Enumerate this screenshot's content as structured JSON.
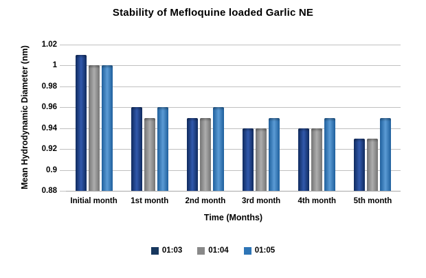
{
  "title": "Stability of Mefloquine loaded Garlic  NE",
  "chart_data": {
    "type": "bar",
    "title": "Stability of Mefloquine loaded Garlic  NE",
    "xlabel": "Time (Months)",
    "ylabel": "Mean Hydrodynamic Diameter (nm)",
    "categories": [
      "Initial month",
      "1st month",
      "2nd month",
      "3rd month",
      "4th month",
      "5th month"
    ],
    "series": [
      {
        "name": "01:03",
        "values": [
          1.01,
          0.96,
          0.95,
          0.94,
          0.94,
          0.93
        ],
        "legend_color": "#17375e",
        "bar_edge_color": "#0f2a5e",
        "bar_mid_color": "#3159ac"
      },
      {
        "name": "01:04",
        "values": [
          1.0,
          0.95,
          0.95,
          0.94,
          0.94,
          0.93
        ],
        "legend_color": "#898989",
        "bar_edge_color": "#747474",
        "bar_mid_color": "#adadad"
      },
      {
        "name": "01:05",
        "values": [
          1.0,
          0.96,
          0.96,
          0.95,
          0.95,
          0.95
        ],
        "legend_color": "#2e75b6",
        "bar_edge_color": "#1e5f9c",
        "bar_mid_color": "#5b9bd5"
      }
    ],
    "ylim": [
      0.88,
      1.02
    ],
    "yticks": [
      "1.02",
      "1",
      "0.98",
      "0.96",
      "0.94",
      "0.92",
      "0.9",
      "0.88"
    ],
    "grid": true,
    "legend_position": "bottom"
  }
}
